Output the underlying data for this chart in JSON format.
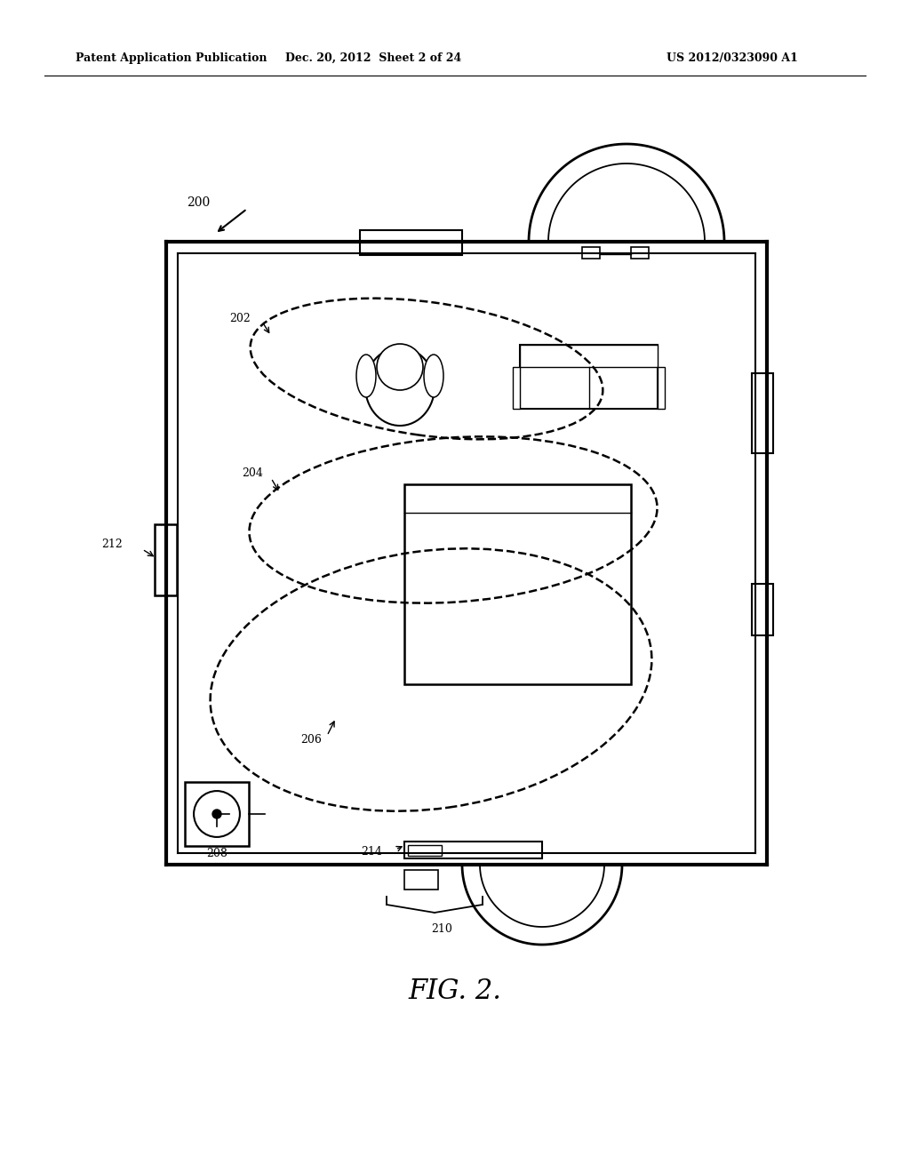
{
  "title": "FIG. 2.",
  "header_left": "Patent Application Publication",
  "header_center": "Dec. 20, 2012  Sheet 2 of 24",
  "header_right": "US 2012/0323090 A1",
  "bg_color": "#ffffff",
  "line_color": "#000000",
  "label_200": "200",
  "label_202": "202",
  "label_204": "204",
  "label_206": "206",
  "label_208": "208",
  "label_210": "210",
  "label_212": "212",
  "label_214": "214"
}
